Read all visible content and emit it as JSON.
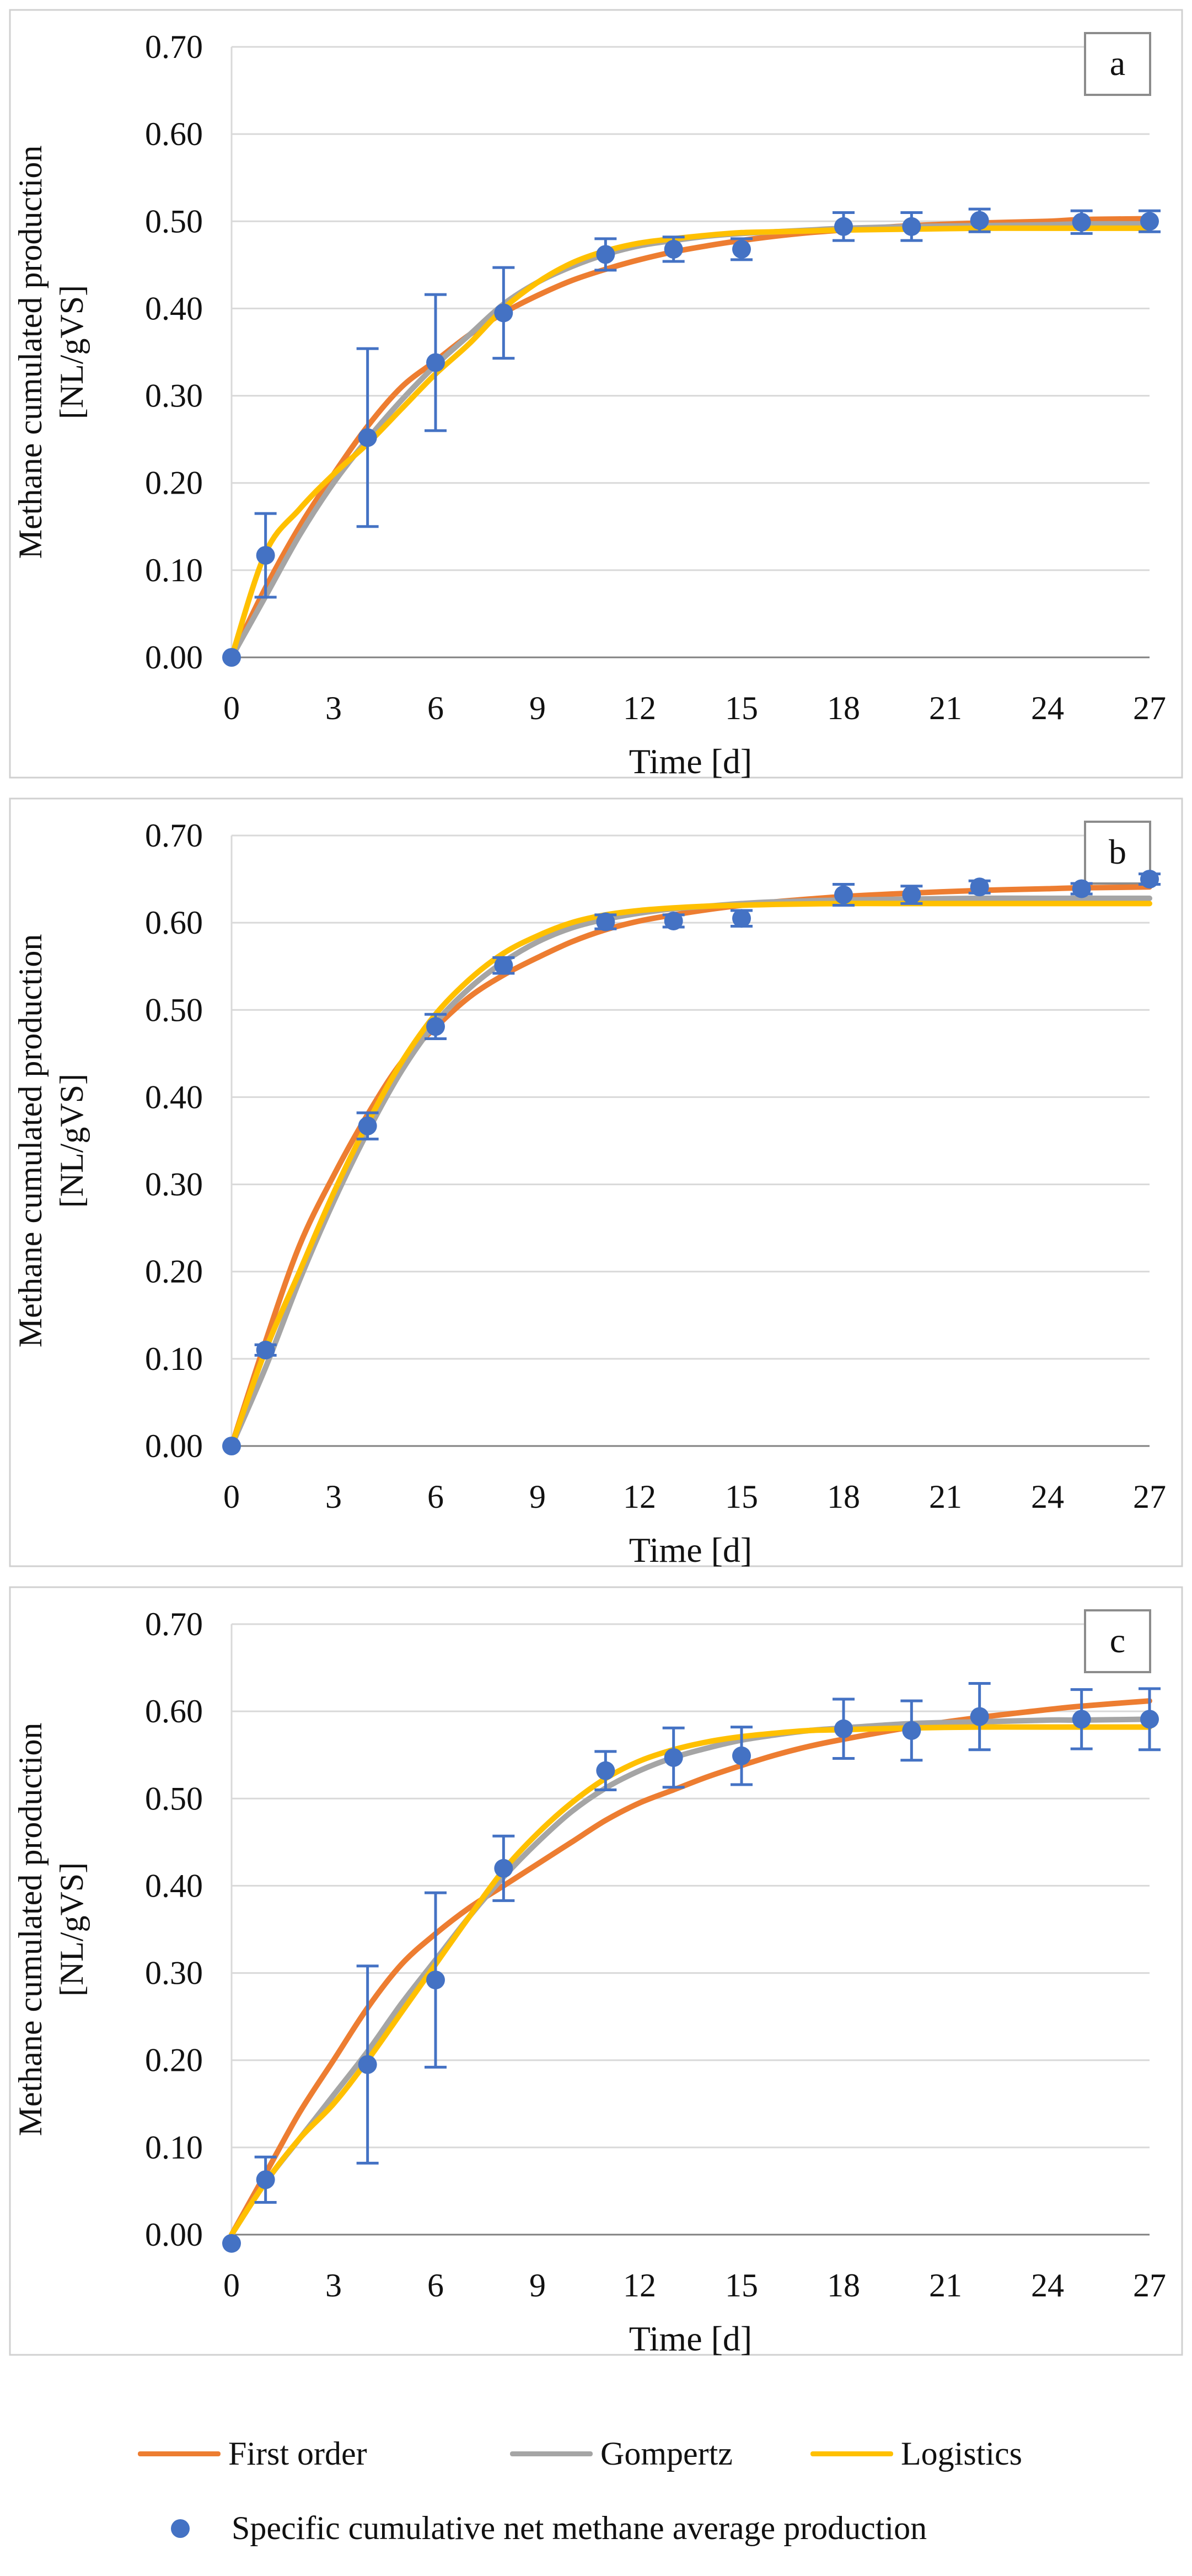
{
  "chart_data": [
    {
      "type": "scatter",
      "panel_label": "a",
      "xlabel": "Time [d]",
      "ylabel_line1": "Methane cumulated production",
      "ylabel_line2": "[NL/gVS]",
      "xlim": [
        0,
        27
      ],
      "ylim": [
        0,
        0.7
      ],
      "x_ticks": [
        "0",
        "3",
        "6",
        "9",
        "12",
        "15",
        "18",
        "21",
        "24",
        "27"
      ],
      "y_ticks": [
        "0.00",
        "0.10",
        "0.20",
        "0.30",
        "0.40",
        "0.50",
        "0.60",
        "0.70"
      ],
      "series": [
        {
          "name": "First order",
          "x": [
            0,
            1,
            2,
            3,
            4,
            5,
            6,
            7,
            8,
            9,
            10,
            11,
            12,
            13,
            14,
            15,
            16,
            17,
            18,
            20,
            22,
            24,
            25,
            27
          ],
          "values": [
            0,
            0.08,
            0.15,
            0.21,
            0.265,
            0.31,
            0.34,
            0.37,
            0.395,
            0.415,
            0.432,
            0.445,
            0.456,
            0.465,
            0.472,
            0.478,
            0.483,
            0.487,
            0.49,
            0.495,
            0.498,
            0.5,
            0.502,
            0.503
          ]
        },
        {
          "name": "Gompertz",
          "x": [
            0,
            1,
            2,
            3,
            4,
            5,
            6,
            7,
            8,
            9,
            10,
            11,
            12,
            13,
            14,
            15,
            16,
            17,
            18,
            20,
            22,
            24,
            25,
            27
          ],
          "values": [
            0,
            0.07,
            0.14,
            0.2,
            0.25,
            0.295,
            0.335,
            0.37,
            0.405,
            0.43,
            0.448,
            0.462,
            0.472,
            0.478,
            0.483,
            0.486,
            0.488,
            0.49,
            0.492,
            0.494,
            0.495,
            0.496,
            0.497,
            0.497
          ]
        },
        {
          "name": "Logistics",
          "x": [
            0,
            1,
            2,
            3,
            4,
            5,
            6,
            7,
            8,
            9,
            10,
            11,
            12,
            13,
            14,
            15,
            16,
            17,
            18,
            20,
            22,
            24,
            25,
            27
          ],
          "values": [
            0,
            0.12,
            0.17,
            0.21,
            0.245,
            0.285,
            0.325,
            0.36,
            0.4,
            0.43,
            0.452,
            0.466,
            0.475,
            0.48,
            0.484,
            0.487,
            0.488,
            0.489,
            0.49,
            0.491,
            0.492,
            0.492,
            0.492,
            0.492
          ]
        }
      ],
      "points": {
        "name": "Specific cumulative net methane average production",
        "x": [
          0,
          1,
          4,
          6,
          8,
          11,
          13,
          15,
          18,
          20,
          22,
          25,
          27
        ],
        "values": [
          0,
          0.117,
          0.252,
          0.338,
          0.395,
          0.462,
          0.468,
          0.468,
          0.494,
          0.494,
          0.501,
          0.499,
          0.5
        ],
        "errors": [
          0,
          0.048,
          0.102,
          0.078,
          0.052,
          0.018,
          0.014,
          0.012,
          0.016,
          0.016,
          0.013,
          0.013,
          0.012
        ]
      }
    },
    {
      "type": "scatter",
      "panel_label": "b",
      "xlabel": "Time [d]",
      "ylabel_line1": "Methane cumulated production",
      "ylabel_line2": "[NL/gVS]",
      "xlim": [
        0,
        27
      ],
      "ylim": [
        0,
        0.7
      ],
      "x_ticks": [
        "0",
        "3",
        "6",
        "9",
        "12",
        "15",
        "18",
        "21",
        "24",
        "27"
      ],
      "y_ticks": [
        "0.00",
        "0.10",
        "0.20",
        "0.30",
        "0.40",
        "0.50",
        "0.60",
        "0.70"
      ],
      "series": [
        {
          "name": "First order",
          "x": [
            0,
            1,
            2,
            3,
            4,
            5,
            6,
            7,
            8,
            9,
            10,
            11,
            12,
            13,
            14,
            15,
            16,
            18,
            20,
            22,
            24,
            25,
            27
          ],
          "values": [
            0,
            0.12,
            0.23,
            0.31,
            0.38,
            0.44,
            0.48,
            0.515,
            0.54,
            0.56,
            0.578,
            0.592,
            0.602,
            0.609,
            0.615,
            0.62,
            0.624,
            0.63,
            0.634,
            0.637,
            0.639,
            0.64,
            0.641
          ]
        },
        {
          "name": "Gompertz",
          "x": [
            0,
            1,
            2,
            3,
            4,
            5,
            6,
            7,
            8,
            9,
            10,
            11,
            12,
            13,
            14,
            15,
            16,
            18,
            20,
            22,
            24,
            25,
            27
          ],
          "values": [
            0,
            0.09,
            0.19,
            0.28,
            0.36,
            0.43,
            0.485,
            0.525,
            0.555,
            0.578,
            0.594,
            0.604,
            0.611,
            0.616,
            0.619,
            0.622,
            0.624,
            0.626,
            0.627,
            0.628,
            0.628,
            0.628,
            0.628
          ]
        },
        {
          "name": "Logistics",
          "x": [
            0,
            1,
            2,
            3,
            4,
            5,
            6,
            7,
            8,
            9,
            10,
            11,
            12,
            13,
            14,
            15,
            16,
            18,
            20,
            22,
            24,
            25,
            27
          ],
          "values": [
            0,
            0.11,
            0.2,
            0.29,
            0.37,
            0.44,
            0.495,
            0.535,
            0.565,
            0.585,
            0.6,
            0.609,
            0.614,
            0.617,
            0.619,
            0.62,
            0.621,
            0.622,
            0.622,
            0.622,
            0.622,
            0.622,
            0.622
          ]
        }
      ],
      "points": {
        "name": "Specific cumulative net methane average production",
        "x": [
          0,
          1,
          4,
          6,
          8,
          11,
          13,
          15,
          18,
          20,
          22,
          25,
          27
        ],
        "values": [
          0,
          0.11,
          0.367,
          0.481,
          0.551,
          0.601,
          0.602,
          0.605,
          0.632,
          0.632,
          0.641,
          0.639,
          0.65
        ],
        "errors": [
          0,
          0.006,
          0.015,
          0.014,
          0.009,
          0.008,
          0.007,
          0.009,
          0.012,
          0.01,
          0.007,
          0.006,
          0.006
        ]
      }
    },
    {
      "type": "scatter",
      "panel_label": "c",
      "xlabel": "Time [d]",
      "ylabel_line1": "Methane cumulated production",
      "ylabel_line2": "[NL/gVS]",
      "xlim": [
        0,
        27
      ],
      "ylim": [
        0,
        0.7
      ],
      "x_ticks": [
        "0",
        "3",
        "6",
        "9",
        "12",
        "15",
        "18",
        "21",
        "24",
        "27"
      ],
      "y_ticks": [
        "0.00",
        "0.10",
        "0.20",
        "0.30",
        "0.40",
        "0.50",
        "0.60",
        "0.70"
      ],
      "series": [
        {
          "name": "First order",
          "x": [
            0,
            1,
            2,
            3,
            4,
            5,
            6,
            7,
            8,
            9,
            10,
            11,
            12,
            13,
            14,
            15,
            16,
            17,
            18,
            20,
            22,
            24,
            25,
            27
          ],
          "values": [
            0,
            0.07,
            0.14,
            0.2,
            0.26,
            0.31,
            0.345,
            0.375,
            0.4,
            0.425,
            0.45,
            0.475,
            0.495,
            0.51,
            0.525,
            0.538,
            0.55,
            0.56,
            0.568,
            0.582,
            0.593,
            0.602,
            0.606,
            0.612
          ]
        },
        {
          "name": "Gompertz",
          "x": [
            0,
            1,
            2,
            3,
            4,
            5,
            6,
            7,
            8,
            9,
            10,
            11,
            12,
            13,
            14,
            15,
            16,
            17,
            18,
            20,
            22,
            24,
            25,
            27
          ],
          "values": [
            0,
            0.06,
            0.11,
            0.16,
            0.21,
            0.265,
            0.315,
            0.365,
            0.41,
            0.45,
            0.485,
            0.512,
            0.532,
            0.547,
            0.558,
            0.567,
            0.573,
            0.578,
            0.581,
            0.586,
            0.588,
            0.59,
            0.59,
            0.591
          ]
        },
        {
          "name": "Logistics",
          "x": [
            0,
            1,
            2,
            3,
            4,
            5,
            6,
            7,
            8,
            9,
            10,
            11,
            12,
            13,
            14,
            15,
            16,
            17,
            18,
            20,
            22,
            24,
            25,
            27
          ],
          "values": [
            0,
            0.06,
            0.11,
            0.15,
            0.2,
            0.255,
            0.31,
            0.365,
            0.418,
            0.46,
            0.495,
            0.523,
            0.543,
            0.556,
            0.565,
            0.571,
            0.575,
            0.578,
            0.579,
            0.581,
            0.582,
            0.582,
            0.582,
            0.582
          ]
        }
      ],
      "points": {
        "name": "Specific cumulative net methane average production",
        "x": [
          0,
          1,
          4,
          6,
          8,
          11,
          13,
          15,
          18,
          20,
          22,
          25,
          27
        ],
        "values": [
          -0.01,
          0.063,
          0.195,
          0.292,
          0.42,
          0.532,
          0.547,
          0.549,
          0.58,
          0.578,
          0.594,
          0.591,
          0.591
        ],
        "errors": [
          0,
          0.026,
          0.113,
          0.1,
          0.037,
          0.022,
          0.034,
          0.033,
          0.034,
          0.034,
          0.038,
          0.034,
          0.035
        ]
      }
    }
  ],
  "legend": {
    "first_order": "First order",
    "gompertz": "Gompertz",
    "logistics": "Logistics",
    "points": "Specific cumulative net methane average production"
  },
  "colors": {
    "first_order": "#ED7D31",
    "gompertz": "#A5A5A5",
    "logistics": "#FFC000",
    "points": "#4472C4",
    "grid": "#D9D9D9",
    "axis": "#808080",
    "text": "#111111"
  }
}
